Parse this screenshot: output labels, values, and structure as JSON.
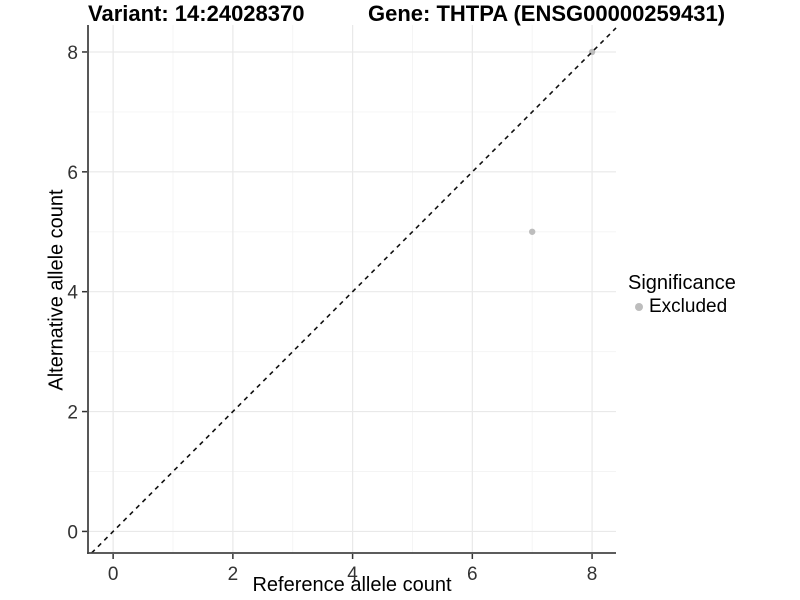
{
  "titles": {
    "variant": "Variant: 14:24028370",
    "gene": "Gene: THTPA (ENSG00000259431)"
  },
  "axes": {
    "x_label": "Reference allele count",
    "y_label": "Alternative allele count"
  },
  "legend": {
    "title": "Significance",
    "items": [
      {
        "label": "Excluded",
        "color": "#bdbdbd"
      }
    ]
  },
  "colors": {
    "point": "#bdbdbd",
    "grid_major": "#e9e9e9",
    "grid_minor": "#f4f4f4",
    "axis_line": "#454545",
    "tick_mark": "#333333",
    "tick_text": "#333333",
    "dashed_line": "#111111"
  },
  "chart_data": {
    "type": "scatter",
    "title": "Variant: 14:24028370 | Gene: THTPA (ENSG00000259431)",
    "xlabel": "Reference allele count",
    "ylabel": "Alternative allele count",
    "xlim": [
      -0.42,
      8.4
    ],
    "ylim": [
      -0.36,
      8.45
    ],
    "x_ticks": [
      0,
      2,
      4,
      6,
      8
    ],
    "y_ticks": [
      0,
      2,
      4,
      6,
      8
    ],
    "x_minor_ticks": [
      1,
      3,
      5,
      7
    ],
    "y_minor_ticks": [
      1,
      3,
      5,
      7
    ],
    "grid": true,
    "legend_position": "right",
    "reference_line": {
      "type": "identity",
      "slope": 1,
      "intercept": 0,
      "style": "dashed",
      "color": "#111111"
    },
    "series": [
      {
        "name": "Excluded",
        "color": "#bdbdbd",
        "points": [
          {
            "x": 7,
            "y": 5
          },
          {
            "x": 8,
            "y": 8
          }
        ]
      }
    ]
  }
}
